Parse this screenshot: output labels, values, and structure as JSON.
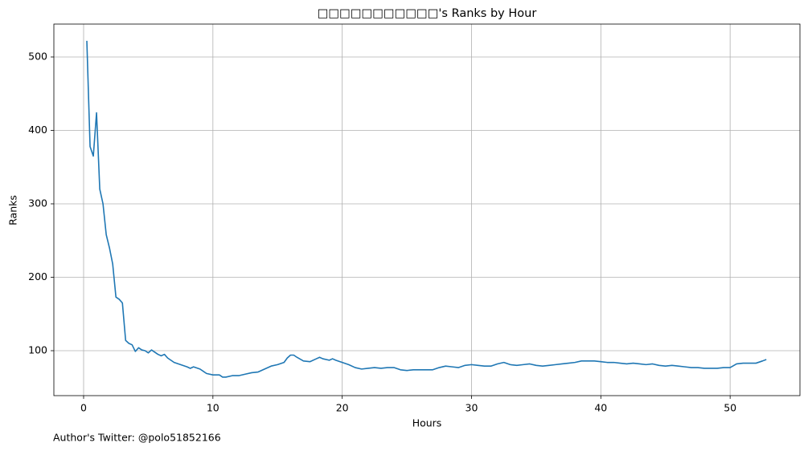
{
  "chart_data": {
    "type": "line",
    "title": "□□□□□□□□□□□'s Ranks by Hour",
    "x_label": "Hours",
    "y_label": "Ranks",
    "footer": "Author's Twitter: @polo51852166",
    "x": [
      0.25,
      0.5,
      0.75,
      1.0,
      1.25,
      1.5,
      1.75,
      2.0,
      2.25,
      2.5,
      2.75,
      3.0,
      3.25,
      3.5,
      3.75,
      4.0,
      4.25,
      4.5,
      4.75,
      5.0,
      5.25,
      5.5,
      5.75,
      6.0,
      6.25,
      6.5,
      6.75,
      7.0,
      7.5,
      8.0,
      8.25,
      8.5,
      9.0,
      9.5,
      10.0,
      10.5,
      10.75,
      11.0,
      11.5,
      12.0,
      12.5,
      13.0,
      13.5,
      14.0,
      14.5,
      15.0,
      15.5,
      15.75,
      16.0,
      16.25,
      16.5,
      17.0,
      17.5,
      18.0,
      18.25,
      18.5,
      19.0,
      19.25,
      19.5,
      20.0,
      20.5,
      21.0,
      21.5,
      22.0,
      22.5,
      23.0,
      23.5,
      24.0,
      24.5,
      25.0,
      25.5,
      26.0,
      26.5,
      27.0,
      27.5,
      28.0,
      28.5,
      29.0,
      29.5,
      30.0,
      30.5,
      31.0,
      31.5,
      32.0,
      32.5,
      33.0,
      33.5,
      34.0,
      34.5,
      35.0,
      35.5,
      36.0,
      36.5,
      37.0,
      37.5,
      38.0,
      38.5,
      39.0,
      39.5,
      40.0,
      40.5,
      41.0,
      41.5,
      42.0,
      42.5,
      43.0,
      43.5,
      44.0,
      44.5,
      45.0,
      45.5,
      46.0,
      46.5,
      47.0,
      47.5,
      48.0,
      48.5,
      49.0,
      49.5,
      50.0,
      50.5,
      51.0,
      51.5,
      52.0,
      52.5,
      52.8
    ],
    "series": [
      {
        "name": "Ranks",
        "color": "#1f77b4",
        "values": [
          522,
          378,
          365,
          424,
          320,
          300,
          258,
          240,
          218,
          173,
          170,
          165,
          114,
          110,
          108,
          99,
          104,
          101,
          100,
          97,
          101,
          98,
          95,
          93,
          95,
          90,
          87,
          84,
          81,
          78,
          76,
          78,
          75,
          69,
          67,
          67,
          64,
          64,
          66,
          66,
          68,
          70,
          71,
          75,
          79,
          81,
          84,
          90,
          94,
          94,
          91,
          86,
          85,
          89,
          91,
          89,
          87,
          89,
          87,
          84,
          81,
          77,
          75,
          76,
          77,
          76,
          77,
          77,
          74,
          73,
          74,
          74,
          74,
          74,
          77,
          79,
          78,
          77,
          80,
          81,
          80,
          79,
          79,
          82,
          84,
          81,
          80,
          81,
          82,
          80,
          79,
          80,
          81,
          82,
          83,
          84,
          86,
          86,
          86,
          85,
          84,
          84,
          83,
          82,
          83,
          82,
          81,
          82,
          80,
          79,
          80,
          79,
          78,
          77,
          77,
          76,
          76,
          76,
          77,
          77,
          82,
          83,
          83,
          83,
          86,
          88
        ]
      }
    ],
    "xlim": [
      -2.3,
      55.4
    ],
    "ylim": [
      38.8,
      544.8
    ],
    "xticks": [
      0,
      10,
      20,
      30,
      40,
      50
    ],
    "yticks": [
      100,
      200,
      300,
      400,
      500
    ],
    "grid": true
  }
}
